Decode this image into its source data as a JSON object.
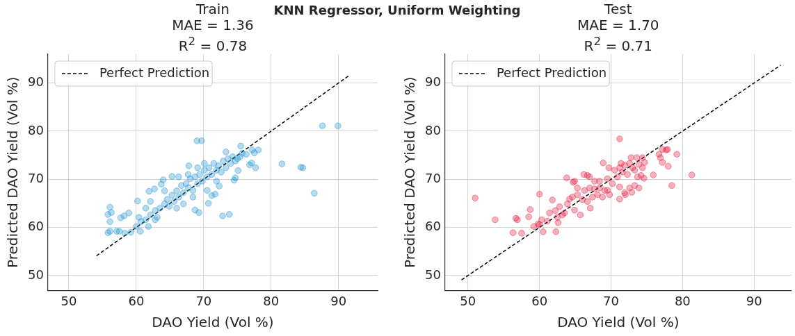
{
  "chart_data": [
    {
      "type": "scatter",
      "title": "Train\nMAE = 1.36\nR$^{2}$ = 0.78",
      "xlabel": "DAO Yield (Vol %)",
      "ylabel": "Predicted DAO Yield (Vol %)",
      "annotations": [
        "KNN Regressor, Uniform Weighting"
      ],
      "xlim": [
        46.9,
        95.8
      ],
      "ylim": [
        46.9,
        96
      ],
      "xticks": [
        50,
        60,
        70,
        80,
        90
      ],
      "yticks": [
        50,
        60,
        70,
        80,
        90
      ],
      "grid": true,
      "legend": "top left",
      "marker": "circle",
      "series": [
        {
          "color": "#1f93cf",
          "x": [
            87.6,
            89.9,
            69.0,
            69.7,
            81.6,
            84.4,
            84.7,
            86.4,
            72.8,
            73.8,
            56.1,
            55.8,
            56.3,
            56.1,
            55.8,
            56.1,
            57.1,
            57.5,
            58.3,
            59.2,
            60.6,
            57.7,
            58.2,
            58.9,
            60.2,
            61.9,
            62.7,
            64.0,
            63.7,
            65.3,
            67.8,
            70.7,
            69.3,
            68.7,
            71.7,
            72.3,
            71.2,
            75.5,
            73.3,
            77.2,
            78.1,
            77.5,
            77.7,
            76.8,
            77.1,
            76.3,
            75.7,
            74.5,
            74.7,
            75.1,
            60.0,
            60.7,
            61.4,
            62.1,
            62.8,
            63.1,
            63.5,
            64.2,
            64.6,
            64.9,
            65.3,
            65.6,
            66.0,
            66.3,
            66.7,
            67.0,
            67.4,
            67.7,
            68.0,
            68.4,
            68.7,
            69.1,
            69.4,
            69.8,
            70.1,
            70.5,
            70.8,
            71.2,
            71.5,
            71.9,
            72.2,
            72.6,
            72.9,
            73.3,
            73.6,
            74.0,
            74.3,
            74.7,
            75.0,
            75.4,
            61.4,
            60.4,
            62.1,
            64.2,
            66.3,
            67.7,
            69.1,
            67.0,
            68.4,
            66.0,
            70.5,
            71.9,
            70.1,
            61.8,
            62.8
          ],
          "values": [
            81.1,
            81.1,
            78.0,
            78.0,
            73.2,
            72.5,
            72.4,
            67.1,
            62.4,
            62.7,
            64.2,
            62.7,
            63.1,
            61.2,
            58.9,
            59.2,
            59.2,
            59.2,
            58.8,
            59.0,
            59.2,
            62.0,
            62.4,
            63.0,
            65.5,
            67.5,
            68.0,
            69.9,
            69.0,
            70.6,
            72.8,
            65.0,
            63.1,
            63.6,
            66.9,
            68.6,
            66.6,
            76.9,
            75.7,
            76.1,
            76.1,
            75.5,
            72.4,
            73.0,
            73.4,
            75.2,
            75.4,
            69.8,
            70.3,
            71.8,
            60.2,
            61.2,
            61.6,
            62.6,
            63.5,
            62.1,
            64.0,
            64.9,
            65.8,
            64.4,
            66.7,
            65.4,
            67.6,
            66.3,
            68.7,
            67.2,
            69.1,
            68.2,
            70.1,
            67.7,
            70.5,
            69.1,
            71.0,
            69.6,
            71.9,
            70.5,
            72.4,
            71.0,
            73.3,
            71.9,
            72.8,
            71.5,
            73.8,
            72.4,
            74.3,
            73.3,
            74.7,
            73.8,
            74.3,
            74.7,
            64.0,
            62.1,
            65.4,
            67.6,
            70.5,
            71.0,
            72.4,
            64.9,
            66.3,
            64.0,
            67.7,
            69.6,
            73.3,
            60.2,
            61.6
          ]
        },
        {
          "type": "line",
          "name": "Perfect Prediction",
          "color": "#000000",
          "line_style": "dashed",
          "marker": "none",
          "x": [
            54.1,
            91.5
          ],
          "values": [
            54.1,
            91.5
          ]
        }
      ]
    },
    {
      "type": "scatter",
      "title": "Test\nMAE = 1.70\nR$^{2}$ = 0.71",
      "xlabel": "DAO Yield (Vol %)",
      "ylabel": "Predicted DAO Yield (Vol %)",
      "xlim": [
        46.8,
        95.2
      ],
      "ylim": [
        46.9,
        96
      ],
      "xticks": [
        50,
        60,
        70,
        80,
        90
      ],
      "yticks": [
        50,
        60,
        70,
        80,
        90
      ],
      "grid": true,
      "legend": "top left",
      "marker": "circle",
      "series": [
        {
          "color": "#e8173c",
          "x": [
            51.0,
            53.8,
            56.7,
            56.9,
            56.3,
            57.5,
            58.5,
            58.7,
            59.2,
            59.8,
            60.0,
            60.5,
            60.3,
            60.0,
            62.3,
            62.6,
            61.8,
            62.2,
            62.8,
            63.2,
            63.8,
            64.7,
            64.9,
            65.7,
            64.9,
            64.2,
            65.3,
            65.3,
            66.2,
            66.7,
            67.0,
            67.1,
            66.3,
            67.0,
            67.7,
            68.4,
            68.1,
            67.4,
            66.7,
            66.0,
            69.1,
            69.8,
            68.4,
            69.5,
            70.2,
            70.9,
            71.2,
            71.6,
            71.9,
            72.6,
            73.3,
            69.5,
            68.8,
            67.7,
            68.9,
            69.7,
            71.2,
            71.2,
            71.4,
            71.9,
            72.6,
            73.0,
            73.3,
            70.5,
            71.2,
            72.3,
            73.7,
            72.8,
            73.6,
            74.4,
            73.9,
            74.7,
            74.4,
            74.2,
            74.6,
            73.9,
            72.9,
            72.0,
            75.9,
            76.7,
            76.9,
            77.2,
            77.2,
            77.7,
            77.9,
            78.0,
            78.5,
            79.2,
            81.3,
            61.1,
            61.4,
            62.5,
            63.5,
            63.9,
            64.6
          ],
          "values": [
            66.1,
            61.6,
            61.9,
            61.6,
            58.9,
            58.8,
            62.2,
            63.7,
            60.2,
            60.7,
            60.6,
            59.1,
            61.6,
            66.9,
            59.1,
            61.0,
            65.7,
            63.5,
            64.3,
            62.6,
            70.3,
            69.4,
            69.6,
            62.6,
            63.6,
            65.9,
            66.8,
            68.2,
            71.0,
            70.8,
            70.5,
            64.0,
            67.7,
            68.2,
            68.0,
            68.2,
            66.8,
            66.3,
            65.4,
            65.8,
            67.7,
            66.8,
            69.6,
            70.1,
            69.1,
            70.5,
            68.4,
            71.5,
            67.2,
            68.2,
            68.7,
            67.7,
            66.3,
            69.6,
            73.4,
            72.4,
            78.4,
            65.9,
            73.3,
            72.9,
            73.3,
            72.4,
            71.9,
            71.9,
            72.4,
            71.0,
            70.5,
            74.5,
            74.5,
            74.5,
            73.1,
            73.5,
            72.4,
            70.8,
            70.2,
            68.2,
            67.3,
            66.8,
            70.9,
            75.2,
            74.5,
            73.5,
            76.2,
            76.1,
            76.2,
            72.7,
            68.7,
            75.2,
            70.9,
            61.3,
            63.0,
            62.1,
            63.0,
            64.9,
            66.3
          ]
        },
        {
          "type": "line",
          "name": "Perfect Prediction",
          "color": "#000000",
          "line_style": "dashed",
          "marker": "none",
          "x": [
            49.1,
            93.7
          ],
          "values": [
            49.1,
            93.7
          ]
        }
      ]
    }
  ]
}
